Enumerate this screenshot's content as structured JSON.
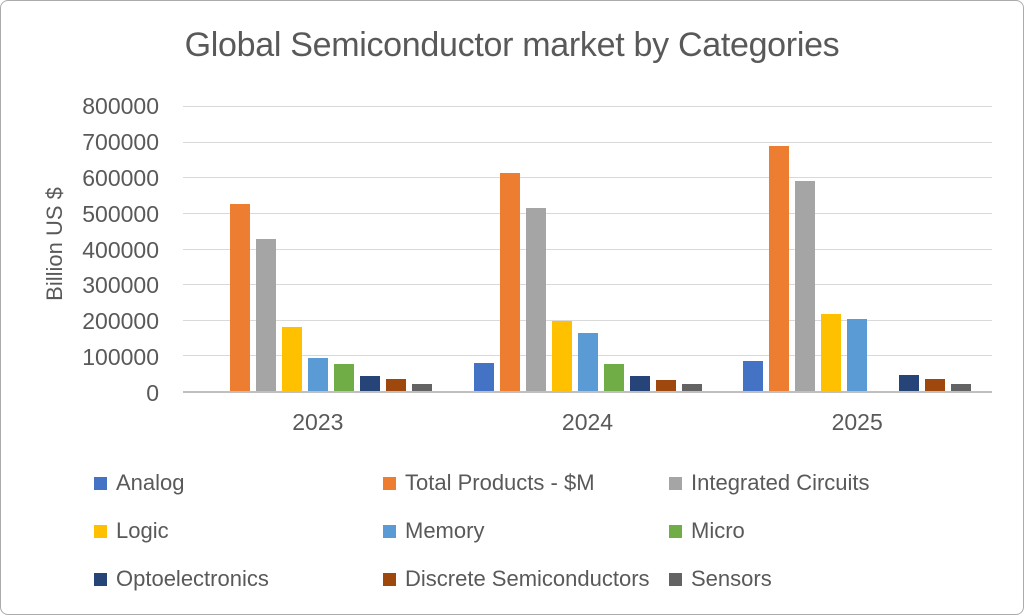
{
  "frame": {
    "title": "Global Semiconductor market by Categories"
  },
  "chart_data": {
    "type": "bar",
    "title": "Global Semiconductor market by Categories",
    "xlabel": "",
    "ylabel": "Billion US $",
    "categories": [
      "2023",
      "2024",
      "2025"
    ],
    "y_ticks": [
      0,
      100000,
      200000,
      300000,
      400000,
      500000,
      600000,
      700000,
      800000
    ],
    "ylim": [
      0,
      800000
    ],
    "grid": true,
    "legend_position": "bottom",
    "legend_columns": 3,
    "series": [
      {
        "name": "Analog",
        "color": "#4472C4",
        "values": [
          null,
          79000,
          85000
        ]
      },
      {
        "name": "Total Products - $M",
        "color": "#ED7D31",
        "values": [
          526000,
          611000,
          687000
        ]
      },
      {
        "name": "Integrated Circuits",
        "color": "#A5A5A5",
        "values": [
          428000,
          515000,
          589000
        ]
      },
      {
        "name": "Logic",
        "color": "#FFC000",
        "values": [
          179000,
          196000,
          217000
        ]
      },
      {
        "name": "Memory",
        "color": "#5B9BD5",
        "values": [
          92000,
          163000,
          203000
        ]
      },
      {
        "name": "Micro",
        "color": "#70AD47",
        "values": [
          76000,
          76000,
          null
        ]
      },
      {
        "name": "Optoelectronics",
        "color": "#264478",
        "values": [
          42000,
          42000,
          44000
        ]
      },
      {
        "name": "Discrete Semiconductors",
        "color": "#9E480E",
        "values": [
          33000,
          30000,
          35000
        ]
      },
      {
        "name": "Sensors",
        "color": "#636363",
        "values": [
          20000,
          19000,
          21000
        ]
      }
    ],
    "style": {
      "gridline_color": "#D9D9D9",
      "axis_line_color": "#BFBFBF",
      "text_color": "#595959"
    }
  }
}
